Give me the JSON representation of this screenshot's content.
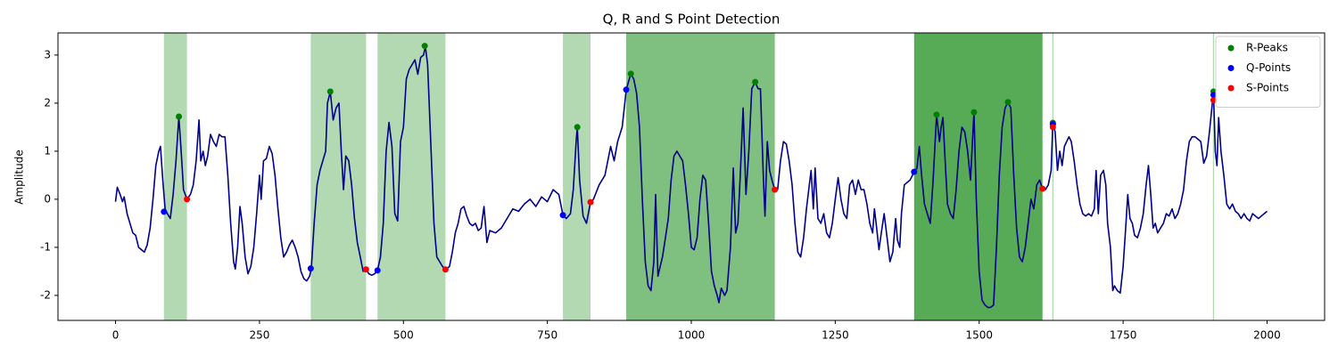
{
  "chart_data": {
    "type": "line",
    "title": "Q, R and S Point Detection",
    "ylabel": "Amplitude",
    "xlim": [
      -100,
      2100
    ],
    "ylim": [
      -2.52,
      3.46
    ],
    "xticks": [
      0,
      250,
      500,
      750,
      1000,
      1250,
      1500,
      1750,
      2000
    ],
    "yticks": [
      -2,
      -1,
      0,
      1,
      2,
      3
    ],
    "legend": "upper right",
    "span_color": "#008000",
    "spans": [
      {
        "start": 84,
        "end": 124,
        "alpha": 0.3
      },
      {
        "start": 339,
        "end": 435,
        "alpha": 0.3
      },
      {
        "start": 455,
        "end": 573,
        "alpha": 0.3
      },
      {
        "start": 777,
        "end": 825,
        "alpha": 0.3
      },
      {
        "start": 887,
        "end": 1145,
        "alpha": 0.5
      },
      {
        "start": 1387,
        "end": 1610,
        "alpha": 0.66
      },
      {
        "start": 1627,
        "end": 1629,
        "alpha": 0.3
      },
      {
        "start": 1906,
        "end": 1908,
        "alpha": 0.3
      }
    ],
    "series": [
      {
        "type": "line",
        "color": "#00008b",
        "x": [
          0,
          3,
          8,
          12,
          15,
          20,
          25,
          30,
          35,
          40,
          45,
          50,
          55,
          60,
          65,
          70,
          75,
          78,
          82,
          86,
          90,
          95,
          100,
          105,
          110,
          114,
          118,
          124,
          130,
          135,
          140,
          145,
          148,
          152,
          156,
          160,
          165,
          170,
          175,
          180,
          185,
          190,
          195,
          200,
          205,
          208,
          212,
          216,
          220,
          225,
          230,
          235,
          240,
          245,
          250,
          253,
          257,
          262,
          267,
          272,
          277,
          282,
          287,
          292,
          297,
          302,
          307,
          312,
          317,
          322,
          327,
          332,
          337,
          340,
          345,
          350,
          355,
          360,
          365,
          368,
          373,
          378,
          383,
          388,
          392,
          396,
          400,
          405,
          410,
          415,
          420,
          425,
          430,
          435,
          440,
          445,
          450,
          455,
          460,
          465,
          470,
          475,
          480,
          485,
          490,
          495,
          500,
          505,
          510,
          515,
          520,
          525,
          530,
          535,
          538,
          542,
          548,
          553,
          558,
          563,
          568,
          573,
          580,
          585,
          590,
          595,
          600,
          605,
          610,
          615,
          620,
          625,
          630,
          635,
          640,
          645,
          650,
          660,
          670,
          680,
          690,
          700,
          710,
          720,
          730,
          740,
          750,
          760,
          770,
          777,
          783,
          790,
          795,
          800,
          802,
          806,
          812,
          818,
          825,
          830,
          840,
          850,
          860,
          866,
          872,
          880,
          887,
          895,
          900,
          905,
          910,
          915,
          920,
          925,
          930,
          935,
          938,
          942,
          946,
          950,
          955,
          960,
          965,
          970,
          975,
          980,
          985,
          990,
          995,
          1000,
          1005,
          1010,
          1015,
          1020,
          1025,
          1030,
          1035,
          1040,
          1045,
          1048,
          1052,
          1058,
          1062,
          1068,
          1073,
          1077,
          1081,
          1085,
          1090,
          1095,
          1100,
          1105,
          1111,
          1116,
          1120,
          1125,
          1128,
          1132,
          1136,
          1140,
          1145,
          1150,
          1155,
          1160,
          1165,
          1170,
          1175,
          1180,
          1185,
          1190,
          1195,
          1200,
          1205,
          1208,
          1212,
          1215,
          1220,
          1225,
          1230,
          1235,
          1240,
          1245,
          1250,
          1255,
          1260,
          1265,
          1270,
          1275,
          1280,
          1285,
          1290,
          1295,
          1300,
          1305,
          1310,
          1315,
          1318,
          1322,
          1326,
          1330,
          1335,
          1340,
          1345,
          1350,
          1355,
          1358,
          1362,
          1365,
          1370,
          1375,
          1380,
          1387,
          1392,
          1396,
          1400,
          1405,
          1410,
          1415,
          1420,
          1426,
          1431,
          1434,
          1437,
          1441,
          1445,
          1450,
          1455,
          1460,
          1465,
          1470,
          1475,
          1480,
          1485,
          1491,
          1495,
          1500,
          1505,
          1510,
          1515,
          1520,
          1525,
          1530,
          1535,
          1540,
          1545,
          1550,
          1555,
          1560,
          1565,
          1570,
          1575,
          1580,
          1585,
          1590,
          1595,
          1600,
          1605,
          1610,
          1615,
          1620,
          1625,
          1628,
          1632,
          1636,
          1640,
          1644,
          1648,
          1652,
          1656,
          1660,
          1665,
          1670,
          1675,
          1680,
          1685,
          1690,
          1695,
          1700,
          1703,
          1707,
          1711,
          1716,
          1720,
          1723,
          1728,
          1732,
          1735,
          1740,
          1745,
          1750,
          1755,
          1758,
          1762,
          1766,
          1770,
          1775,
          1780,
          1785,
          1790,
          1794,
          1798,
          1802,
          1806,
          1810,
          1815,
          1820,
          1825,
          1830,
          1835,
          1840,
          1845,
          1850,
          1855,
          1860,
          1865,
          1870,
          1875,
          1880,
          1885,
          1890,
          1895,
          1900,
          1907,
          1910,
          1913,
          1916,
          1920,
          1925,
          1930,
          1935,
          1940,
          1945,
          1950,
          1955,
          1960,
          1965,
          1970,
          1975,
          1980,
          1985,
          1990,
          1995,
          2000
        ],
        "values": [
          -0.05,
          0.25,
          0.1,
          -0.05,
          0.05,
          -0.3,
          -0.5,
          -0.7,
          -0.75,
          -1.0,
          -1.05,
          -1.1,
          -0.95,
          -0.6,
          0.0,
          0.7,
          1.0,
          1.1,
          0.4,
          -0.2,
          -0.3,
          -0.4,
          0.1,
          0.8,
          1.72,
          1.0,
          0.2,
          0,
          0.1,
          0.3,
          0.8,
          1.65,
          0.8,
          1.0,
          0.7,
          0.9,
          1.35,
          1.2,
          1.1,
          1.35,
          1.3,
          1.3,
          0.5,
          -0.5,
          -1.3,
          -1.45,
          -1.0,
          -0.15,
          -0.5,
          -1.2,
          -1.55,
          -1.4,
          -1.0,
          -0.3,
          0.5,
          0.0,
          0.8,
          0.85,
          1.1,
          0.95,
          0.5,
          -0.2,
          -0.8,
          -1.2,
          -1.1,
          -0.95,
          -0.85,
          -1.0,
          -1.2,
          -1.5,
          -1.65,
          -1.7,
          -1.6,
          -1.44,
          -0.5,
          0.3,
          0.6,
          0.8,
          1.0,
          2.0,
          2.24,
          1.65,
          1.9,
          2.0,
          1.0,
          0.2,
          0.9,
          0.8,
          0.3,
          -0.4,
          -0.9,
          -1.2,
          -1.5,
          -1.46,
          -1.55,
          -1.58,
          -1.55,
          -1.48,
          -1.2,
          -0.5,
          1.0,
          1.6,
          1.1,
          -0.3,
          -0.45,
          1.2,
          1.5,
          2.5,
          2.7,
          2.8,
          2.9,
          2.6,
          2.95,
          3.0,
          3.19,
          2.8,
          1.0,
          -0.5,
          -1.2,
          -1.3,
          -1.4,
          -1.46,
          -1.4,
          -1.1,
          -0.7,
          -0.5,
          -0.2,
          -0.15,
          -0.35,
          -0.5,
          -0.55,
          -0.5,
          -0.65,
          -0.6,
          -0.15,
          -0.9,
          -0.65,
          -0.7,
          -0.6,
          -0.4,
          -0.2,
          -0.25,
          -0.1,
          0.0,
          -0.15,
          0.05,
          -0.05,
          0.2,
          0.1,
          -0.33,
          -0.4,
          -0.3,
          0.2,
          1.2,
          1.5,
          0.4,
          -0.35,
          -0.5,
          -0.06,
          0.0,
          0.3,
          0.5,
          1.1,
          0.8,
          1.2,
          1.5,
          2.28,
          2.61,
          2.5,
          2.2,
          1.5,
          0.0,
          -1.3,
          -1.8,
          -1.9,
          -1.3,
          0.1,
          -1.6,
          -1.4,
          -1.2,
          -0.8,
          -0.4,
          0.4,
          0.9,
          1.0,
          0.9,
          0.8,
          0.3,
          -0.3,
          -1.0,
          -1.05,
          -0.8,
          0.0,
          0.5,
          0.4,
          -0.5,
          -1.5,
          -1.8,
          -2.0,
          -2.15,
          -1.85,
          -2.0,
          -1.9,
          -1.0,
          0.65,
          -0.7,
          -0.5,
          0.5,
          1.9,
          0.1,
          1.0,
          2.3,
          2.44,
          2.3,
          2.3,
          0.5,
          -0.35,
          1.2,
          0.6,
          0.4,
          0.2,
          0.2,
          0.8,
          1.2,
          1.15,
          0.8,
          0.3,
          -0.5,
          -1.1,
          -1.2,
          -0.8,
          -0.2,
          0.3,
          0.6,
          -0.2,
          0.65,
          -0.4,
          -0.5,
          -0.3,
          -0.7,
          -0.8,
          -0.5,
          0.0,
          0.45,
          0.0,
          -0.3,
          -0.4,
          0.3,
          0.4,
          0.1,
          0.4,
          0.2,
          0.2,
          -0.1,
          -0.5,
          -0.7,
          -0.2,
          -0.6,
          -1.05,
          -0.7,
          -0.3,
          -0.8,
          -1.3,
          -1.1,
          -0.4,
          -0.85,
          -1.0,
          -0.3,
          0.3,
          0.35,
          0.4,
          0.57,
          0.65,
          1.1,
          0.5,
          -0.1,
          -0.3,
          -0.5,
          0.4,
          1.76,
          1.2,
          1.5,
          1.7,
          0.8,
          -0.1,
          -0.3,
          -0.4,
          0.2,
          1.0,
          1.5,
          1.4,
          1.0,
          0.4,
          1.81,
          0.0,
          -1.5,
          -2.1,
          -2.2,
          -2.25,
          -2.25,
          -2.2,
          -1.0,
          0.5,
          1.5,
          1.9,
          2.02,
          1.9,
          0.5,
          -0.6,
          -1.2,
          -1.3,
          -1.0,
          -0.5,
          0.0,
          -0.2,
          0.3,
          0.4,
          0.22,
          0.2,
          0.3,
          0.6,
          1.59,
          1.4,
          0.6,
          1.0,
          0.7,
          1.1,
          1.2,
          1.3,
          1.2,
          0.8,
          0.3,
          -0.1,
          -0.3,
          -0.35,
          -0.3,
          -0.35,
          -0.2,
          0.6,
          -0.3,
          0.5,
          0.6,
          0.3,
          -0.5,
          -1.0,
          -1.9,
          -1.8,
          -1.9,
          -1.95,
          -1.4,
          -0.5,
          0.1,
          -0.4,
          -0.5,
          -0.75,
          -0.8,
          -0.6,
          -0.3,
          0.3,
          0.7,
          0.1,
          -0.6,
          -0.5,
          -0.7,
          -0.6,
          -0.5,
          -0.3,
          -0.35,
          -0.2,
          -0.4,
          -0.3,
          -0.1,
          0.2,
          0.8,
          1.2,
          1.3,
          1.3,
          1.25,
          1.2,
          0.75,
          0.9,
          1.4,
          2.24,
          1.0,
          0.7,
          1.7,
          1.0,
          0.5,
          -0.1,
          -0.2,
          -0.1,
          -0.25,
          -0.3,
          -0.4,
          -0.3,
          -0.4,
          -0.45,
          -0.3,
          -0.35,
          -0.4,
          -0.35,
          -0.3,
          -0.25
        ]
      },
      {
        "type": "scatter",
        "name": "R-Peaks",
        "color": "#008000",
        "x": [
          110,
          373,
          537,
          802,
          895,
          1111,
          1426,
          1491,
          1550,
          1628,
          1907
        ],
        "values": [
          1.72,
          2.24,
          3.19,
          1.5,
          2.61,
          2.44,
          1.76,
          1.81,
          2.02,
          1.59,
          2.24
        ]
      },
      {
        "type": "scatter",
        "name": "Q-Points",
        "color": "#0000ff",
        "x": [
          84,
          339,
          455,
          777,
          887,
          1387,
          1628,
          1907
        ],
        "values": [
          -0.26,
          -1.44,
          -1.48,
          -0.33,
          2.28,
          0.57,
          1.56,
          2.17
        ]
      },
      {
        "type": "scatter",
        "name": "S-Points",
        "color": "#ff0000",
        "x": [
          124,
          435,
          573,
          825,
          1145,
          1610,
          1628,
          1907
        ],
        "values": [
          0,
          -1.46,
          -1.46,
          -0.06,
          0.2,
          0.22,
          1.5,
          2.06
        ]
      }
    ]
  }
}
